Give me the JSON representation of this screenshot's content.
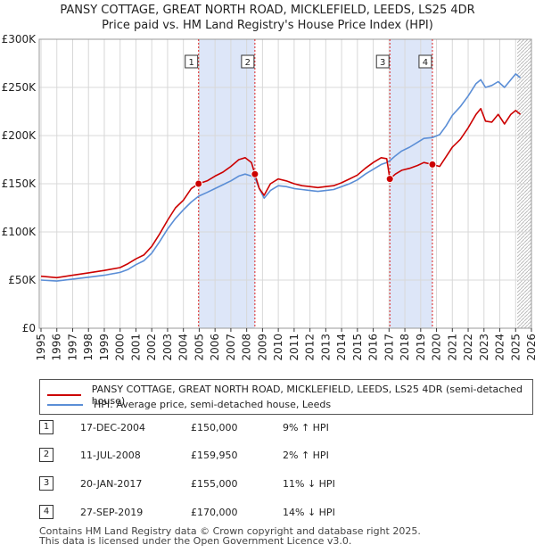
{
  "title_line1": "PANSY COTTAGE, GREAT NORTH ROAD, MICKLEFIELD, LEEDS, LS25 4DR",
  "title_line2": "Price paid vs. HM Land Registry's House Price Index (HPI)",
  "chart_data": {
    "type": "line",
    "xlim": [
      1995,
      2026
    ],
    "ylim": [
      0,
      300000
    ],
    "x_ticks": [
      "1995",
      "1996",
      "1997",
      "1998",
      "1999",
      "2000",
      "2001",
      "2002",
      "2003",
      "2004",
      "2005",
      "2006",
      "2007",
      "2008",
      "2009",
      "2010",
      "2011",
      "2012",
      "2013",
      "2014",
      "2015",
      "2016",
      "2017",
      "2018",
      "2019",
      "2020",
      "2021",
      "2022",
      "2023",
      "2024",
      "2025",
      "2026"
    ],
    "y_ticks": [
      {
        "value": 0,
        "label": "£0"
      },
      {
        "value": 50000,
        "label": "£50K"
      },
      {
        "value": 100000,
        "label": "£100K"
      },
      {
        "value": 150000,
        "label": "£150K"
      },
      {
        "value": 200000,
        "label": "£200K"
      },
      {
        "value": 250000,
        "label": "£250K"
      },
      {
        "value": 300000,
        "label": "£300K"
      }
    ],
    "series": [
      {
        "name": "PANSY COTTAGE, GREAT NORTH ROAD, MICKLEFIELD, LEEDS, LS25 4DR (semi-detached house)",
        "color": "#cc0000",
        "points": [
          [
            1995.0,
            54000
          ],
          [
            1996.0,
            52500
          ],
          [
            1997.0,
            55000
          ],
          [
            1998.0,
            57500
          ],
          [
            1999.0,
            60000
          ],
          [
            2000.0,
            63000
          ],
          [
            2000.5,
            67000
          ],
          [
            2001.0,
            72000
          ],
          [
            2001.5,
            76000
          ],
          [
            2002.0,
            85000
          ],
          [
            2002.5,
            98000
          ],
          [
            2003.0,
            112000
          ],
          [
            2003.5,
            125000
          ],
          [
            2004.0,
            133000
          ],
          [
            2004.5,
            145000
          ],
          [
            2004.96,
            150000
          ],
          [
            2005.5,
            153000
          ],
          [
            2006.0,
            158000
          ],
          [
            2006.5,
            162000
          ],
          [
            2007.0,
            168000
          ],
          [
            2007.5,
            175000
          ],
          [
            2007.9,
            177000
          ],
          [
            2008.3,
            172000
          ],
          [
            2008.52,
            159950
          ],
          [
            2008.8,
            145000
          ],
          [
            2009.1,
            138000
          ],
          [
            2009.5,
            150000
          ],
          [
            2010.0,
            155000
          ],
          [
            2010.5,
            153000
          ],
          [
            2011.0,
            150000
          ],
          [
            2011.5,
            148000
          ],
          [
            2012.0,
            147000
          ],
          [
            2012.5,
            146000
          ],
          [
            2013.0,
            147000
          ],
          [
            2013.5,
            148000
          ],
          [
            2014.0,
            151000
          ],
          [
            2014.5,
            155000
          ],
          [
            2015.0,
            159000
          ],
          [
            2015.5,
            166000
          ],
          [
            2016.0,
            172000
          ],
          [
            2016.5,
            177000
          ],
          [
            2016.85,
            176000
          ],
          [
            2017.05,
            155000
          ],
          [
            2017.4,
            160000
          ],
          [
            2017.8,
            164000
          ],
          [
            2018.3,
            166000
          ],
          [
            2018.8,
            169000
          ],
          [
            2019.2,
            172000
          ],
          [
            2019.74,
            170000
          ],
          [
            2020.2,
            168000
          ],
          [
            2020.6,
            178000
          ],
          [
            2021.0,
            188000
          ],
          [
            2021.5,
            196000
          ],
          [
            2022.0,
            208000
          ],
          [
            2022.5,
            222000
          ],
          [
            2022.8,
            228000
          ],
          [
            2023.1,
            215000
          ],
          [
            2023.5,
            214000
          ],
          [
            2023.9,
            222000
          ],
          [
            2024.3,
            212000
          ],
          [
            2024.7,
            222000
          ],
          [
            2025.0,
            226000
          ],
          [
            2025.3,
            222000
          ]
        ]
      },
      {
        "name": "HPI: Average price, semi-detached house, Leeds",
        "color": "#5b8ed6",
        "points": [
          [
            1995.0,
            50000
          ],
          [
            1996.0,
            49000
          ],
          [
            1997.0,
            51000
          ],
          [
            1998.0,
            53000
          ],
          [
            1999.0,
            55000
          ],
          [
            2000.0,
            58000
          ],
          [
            2000.5,
            61000
          ],
          [
            2001.0,
            66000
          ],
          [
            2001.5,
            70000
          ],
          [
            2002.0,
            78000
          ],
          [
            2002.5,
            90000
          ],
          [
            2003.0,
            103000
          ],
          [
            2003.5,
            114000
          ],
          [
            2004.0,
            123000
          ],
          [
            2004.5,
            131000
          ],
          [
            2004.96,
            137000
          ],
          [
            2005.5,
            141000
          ],
          [
            2006.0,
            145000
          ],
          [
            2006.5,
            149000
          ],
          [
            2007.0,
            153000
          ],
          [
            2007.5,
            158000
          ],
          [
            2007.9,
            160000
          ],
          [
            2008.3,
            158000
          ],
          [
            2008.52,
            156000
          ],
          [
            2008.8,
            145000
          ],
          [
            2009.1,
            135000
          ],
          [
            2009.5,
            143000
          ],
          [
            2010.0,
            148000
          ],
          [
            2010.5,
            147000
          ],
          [
            2011.0,
            145000
          ],
          [
            2011.5,
            144000
          ],
          [
            2012.0,
            143000
          ],
          [
            2012.5,
            142000
          ],
          [
            2013.0,
            143000
          ],
          [
            2013.5,
            144000
          ],
          [
            2014.0,
            147000
          ],
          [
            2014.5,
            150000
          ],
          [
            2015.0,
            154000
          ],
          [
            2015.5,
            160000
          ],
          [
            2016.0,
            165000
          ],
          [
            2016.5,
            170000
          ],
          [
            2016.85,
            172000
          ],
          [
            2017.05,
            174000
          ],
          [
            2017.4,
            179000
          ],
          [
            2017.8,
            184000
          ],
          [
            2018.3,
            188000
          ],
          [
            2018.8,
            193000
          ],
          [
            2019.2,
            197000
          ],
          [
            2019.74,
            198000
          ],
          [
            2020.2,
            201000
          ],
          [
            2020.6,
            210000
          ],
          [
            2021.0,
            221000
          ],
          [
            2021.5,
            230000
          ],
          [
            2022.0,
            241000
          ],
          [
            2022.5,
            254000
          ],
          [
            2022.8,
            258000
          ],
          [
            2023.1,
            250000
          ],
          [
            2023.5,
            252000
          ],
          [
            2023.9,
            256000
          ],
          [
            2024.3,
            250000
          ],
          [
            2024.7,
            258000
          ],
          [
            2025.0,
            264000
          ],
          [
            2025.3,
            260000
          ]
        ]
      }
    ],
    "sales": [
      {
        "num": "1",
        "x": 2004.96,
        "price": 150000
      },
      {
        "num": "2",
        "x": 2008.52,
        "price": 159950
      },
      {
        "num": "3",
        "x": 2017.05,
        "price": 155000
      },
      {
        "num": "4",
        "x": 2019.74,
        "price": 170000
      }
    ],
    "shaded_ranges": [
      [
        2004.96,
        2008.52
      ],
      [
        2017.05,
        2019.74
      ]
    ],
    "projection_from": 2025.1,
    "colors": {
      "shade": "#dde6f8",
      "marker_line": "#dd2222",
      "grid": "#d8d8d8",
      "axis": "#333333"
    }
  },
  "legend": {
    "items": [
      {
        "label": "PANSY COTTAGE, GREAT NORTH ROAD, MICKLEFIELD, LEEDS, LS25 4DR (semi-detached house)",
        "color": "#cc0000"
      },
      {
        "label": "HPI: Average price, semi-detached house, Leeds",
        "color": "#5b8ed6"
      }
    ]
  },
  "sales_table": [
    {
      "num": "1",
      "date": "17-DEC-2004",
      "price": "£150,000",
      "hpi": "9% ↑ HPI"
    },
    {
      "num": "2",
      "date": "11-JUL-2008",
      "price": "£159,950",
      "hpi": "2% ↑ HPI"
    },
    {
      "num": "3",
      "date": "20-JAN-2017",
      "price": "£155,000",
      "hpi": "11% ↓ HPI"
    },
    {
      "num": "4",
      "date": "27-SEP-2019",
      "price": "£170,000",
      "hpi": "14% ↓ HPI"
    }
  ],
  "footer": {
    "line1": "Contains HM Land Registry data © Crown copyright and database right 2025.",
    "line2": "This data is licensed under the Open Government Licence v3.0."
  }
}
